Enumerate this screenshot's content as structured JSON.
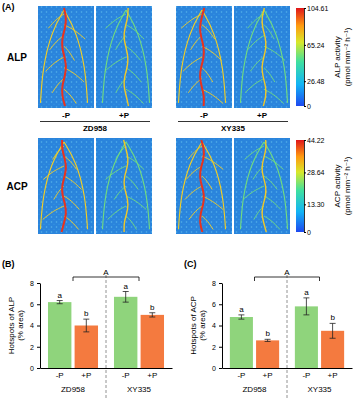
{
  "chart_data": [
    {
      "type": "image_grid",
      "panel_label": "(A)",
      "rows": [
        "ALP",
        "ACP"
      ],
      "groups": [
        "ZD958",
        "XY335"
      ],
      "conditions": [
        "-P",
        "+P"
      ],
      "colorbars": [
        {
          "title": "ALP activity (pmol mm⁻² h⁻¹)",
          "range": [
            0,
            104.61
          ],
          "ticks": [
            0,
            26.48,
            65.24,
            104.61
          ]
        },
        {
          "title": "ACP activity (pmol mm⁻² h⁻¹)",
          "range": [
            0,
            44.22
          ],
          "ticks": [
            0,
            {
              "value": 13.3,
              "label": "13.30"
            },
            28.64,
            44.22
          ]
        }
      ]
    },
    {
      "type": "bar",
      "panel_label": "(B)",
      "y_label": "Hotspots of ALP (% area)",
      "categories": [
        "ZD958",
        "XY335"
      ],
      "series": [
        {
          "name": "-P",
          "color": "#8fd47c",
          "values": [
            6.2,
            6.7
          ],
          "errors": [
            0.15,
            0.5
          ],
          "letters": [
            "a",
            "a"
          ]
        },
        {
          "name": "+P",
          "color": "#f47a3f",
          "values": [
            4.0,
            5.0
          ],
          "errors": [
            0.6,
            0.2
          ],
          "letters": [
            "b",
            "b"
          ]
        }
      ],
      "annotations": [
        "A"
      ],
      "ylim": [
        0,
        8
      ],
      "yticks": [
        0,
        2,
        4,
        6,
        8
      ]
    },
    {
      "type": "bar",
      "panel_label": "(C)",
      "y_label": "Hotspots of ACP (% area)",
      "categories": [
        "ZD958",
        "XY335"
      ],
      "series": [
        {
          "name": "-P",
          "color": "#8fd47c",
          "values": [
            4.8,
            5.8
          ],
          "errors": [
            0.2,
            0.8
          ],
          "letters": [
            "a",
            "a"
          ]
        },
        {
          "name": "+P",
          "color": "#f47a3f",
          "values": [
            2.6,
            3.5
          ],
          "errors": [
            0.1,
            0.7
          ],
          "letters": [
            "b",
            "b"
          ]
        }
      ],
      "annotations": [
        "A"
      ],
      "ylim": [
        0,
        8
      ],
      "yticks": [
        0,
        2,
        4,
        6,
        8
      ]
    }
  ]
}
